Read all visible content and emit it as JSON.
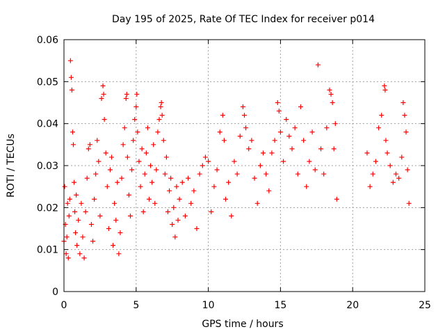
{
  "chart_data": {
    "type": "scatter",
    "title": "Day 195 of 2025, Rate Of TEC Index for receiver p014",
    "xlabel": "GPS time / hours",
    "ylabel": "ROTI / TECUs",
    "xlim": [
      0,
      25
    ],
    "ylim": [
      0,
      0.06
    ],
    "xticks": [
      0,
      5,
      10,
      15,
      20,
      25
    ],
    "xtick_labels": [
      "0",
      "5",
      "10",
      "15",
      "20",
      "25"
    ],
    "yticks": [
      0,
      0.01,
      0.02,
      0.03,
      0.04,
      0.05,
      0.06
    ],
    "ytick_labels": [
      "0",
      "0.01",
      "0.02",
      "0.03",
      "0.04",
      "0.05",
      "0.06"
    ],
    "grid": true,
    "marker": "plus",
    "color": "#ff0000",
    "series": [
      {
        "points": [
          [
            0.0,
            0.012
          ],
          [
            0.05,
            0.025
          ],
          [
            0.1,
            0.016
          ],
          [
            0.15,
            0.009
          ],
          [
            0.2,
            0.013
          ],
          [
            0.25,
            0.021
          ],
          [
            0.3,
            0.008
          ],
          [
            0.35,
            0.018
          ],
          [
            0.4,
            0.022
          ],
          [
            0.45,
            0.055
          ],
          [
            0.5,
            0.051
          ],
          [
            0.55,
            0.048
          ],
          [
            0.6,
            0.038
          ],
          [
            0.65,
            0.035
          ],
          [
            0.7,
            0.026
          ],
          [
            0.75,
            0.019
          ],
          [
            0.8,
            0.014
          ],
          [
            0.85,
            0.023
          ],
          [
            0.9,
            0.011
          ],
          [
            1.0,
            0.017
          ],
          [
            1.1,
            0.009
          ],
          [
            1.2,
            0.021
          ],
          [
            1.3,
            0.013
          ],
          [
            1.4,
            0.008
          ],
          [
            1.5,
            0.019
          ],
          [
            1.6,
            0.027
          ],
          [
            1.7,
            0.034
          ],
          [
            1.8,
            0.035
          ],
          [
            1.9,
            0.016
          ],
          [
            2.0,
            0.012
          ],
          [
            2.1,
            0.022
          ],
          [
            2.2,
            0.028
          ],
          [
            2.3,
            0.036
          ],
          [
            2.4,
            0.031
          ],
          [
            2.5,
            0.018
          ],
          [
            2.6,
            0.046
          ],
          [
            2.7,
            0.049
          ],
          [
            2.75,
            0.047
          ],
          [
            2.8,
            0.041
          ],
          [
            2.9,
            0.033
          ],
          [
            3.0,
            0.025
          ],
          [
            3.1,
            0.015
          ],
          [
            3.2,
            0.029
          ],
          [
            3.3,
            0.032
          ],
          [
            3.4,
            0.011
          ],
          [
            3.5,
            0.021
          ],
          [
            3.6,
            0.017
          ],
          [
            3.7,
            0.026
          ],
          [
            3.8,
            0.009
          ],
          [
            3.9,
            0.014
          ],
          [
            4.0,
            0.027
          ],
          [
            4.1,
            0.035
          ],
          [
            4.2,
            0.039
          ],
          [
            4.3,
            0.046
          ],
          [
            4.35,
            0.047
          ],
          [
            4.4,
            0.032
          ],
          [
            4.5,
            0.023
          ],
          [
            4.6,
            0.018
          ],
          [
            4.7,
            0.029
          ],
          [
            4.8,
            0.036
          ],
          [
            4.9,
            0.041
          ],
          [
            5.0,
            0.044
          ],
          [
            5.05,
            0.047
          ],
          [
            5.1,
            0.038
          ],
          [
            5.2,
            0.031
          ],
          [
            5.3,
            0.025
          ],
          [
            5.4,
            0.034
          ],
          [
            5.5,
            0.019
          ],
          [
            5.6,
            0.028
          ],
          [
            5.7,
            0.033
          ],
          [
            5.8,
            0.039
          ],
          [
            5.9,
            0.022
          ],
          [
            6.0,
            0.03
          ],
          [
            6.1,
            0.026
          ],
          [
            6.2,
            0.035
          ],
          [
            6.3,
            0.021
          ],
          [
            6.4,
            0.029
          ],
          [
            6.5,
            0.038
          ],
          [
            6.6,
            0.041
          ],
          [
            6.7,
            0.044
          ],
          [
            6.75,
            0.045
          ],
          [
            6.8,
            0.042
          ],
          [
            6.9,
            0.036
          ],
          [
            7.0,
            0.028
          ],
          [
            7.1,
            0.032
          ],
          [
            7.2,
            0.019
          ],
          [
            7.3,
            0.024
          ],
          [
            7.4,
            0.027
          ],
          [
            7.5,
            0.016
          ],
          [
            7.6,
            0.02
          ],
          [
            7.7,
            0.013
          ],
          [
            7.8,
            0.025
          ],
          [
            7.9,
            0.017
          ],
          [
            8.0,
            0.022
          ],
          [
            8.2,
            0.026
          ],
          [
            8.4,
            0.018
          ],
          [
            8.6,
            0.027
          ],
          [
            8.8,
            0.021
          ],
          [
            9.0,
            0.024
          ],
          [
            9.2,
            0.015
          ],
          [
            9.4,
            0.028
          ],
          [
            9.6,
            0.03
          ],
          [
            9.8,
            0.032
          ],
          [
            10.0,
            0.031
          ],
          [
            10.2,
            0.019
          ],
          [
            10.4,
            0.025
          ],
          [
            10.6,
            0.029
          ],
          [
            10.8,
            0.038
          ],
          [
            11.0,
            0.042
          ],
          [
            11.1,
            0.036
          ],
          [
            11.2,
            0.022
          ],
          [
            11.4,
            0.026
          ],
          [
            11.6,
            0.018
          ],
          [
            11.8,
            0.031
          ],
          [
            12.0,
            0.028
          ],
          [
            12.2,
            0.037
          ],
          [
            12.4,
            0.044
          ],
          [
            12.5,
            0.042
          ],
          [
            12.6,
            0.039
          ],
          [
            12.8,
            0.034
          ],
          [
            13.0,
            0.036
          ],
          [
            13.2,
            0.027
          ],
          [
            13.4,
            0.021
          ],
          [
            13.6,
            0.03
          ],
          [
            13.8,
            0.033
          ],
          [
            14.0,
            0.028
          ],
          [
            14.2,
            0.024
          ],
          [
            14.4,
            0.033
          ],
          [
            14.6,
            0.036
          ],
          [
            14.8,
            0.045
          ],
          [
            14.9,
            0.043
          ],
          [
            15.0,
            0.038
          ],
          [
            15.2,
            0.031
          ],
          [
            15.4,
            0.041
          ],
          [
            15.6,
            0.037
          ],
          [
            15.8,
            0.034
          ],
          [
            16.0,
            0.039
          ],
          [
            16.2,
            0.028
          ],
          [
            16.4,
            0.044
          ],
          [
            16.6,
            0.036
          ],
          [
            16.8,
            0.025
          ],
          [
            17.0,
            0.031
          ],
          [
            17.2,
            0.038
          ],
          [
            17.4,
            0.029
          ],
          [
            17.6,
            0.054
          ],
          [
            17.8,
            0.034
          ],
          [
            18.0,
            0.028
          ],
          [
            18.2,
            0.039
          ],
          [
            18.4,
            0.048
          ],
          [
            18.5,
            0.047
          ],
          [
            18.6,
            0.045
          ],
          [
            18.7,
            0.034
          ],
          [
            18.8,
            0.04
          ],
          [
            18.9,
            0.022
          ],
          [
            21.0,
            0.033
          ],
          [
            21.2,
            0.025
          ],
          [
            21.4,
            0.028
          ],
          [
            21.6,
            0.031
          ],
          [
            21.8,
            0.039
          ],
          [
            22.0,
            0.042
          ],
          [
            22.2,
            0.049
          ],
          [
            22.25,
            0.048
          ],
          [
            22.3,
            0.036
          ],
          [
            22.4,
            0.033
          ],
          [
            22.6,
            0.03
          ],
          [
            22.8,
            0.026
          ],
          [
            23.0,
            0.028
          ],
          [
            23.2,
            0.027
          ],
          [
            23.4,
            0.032
          ],
          [
            23.5,
            0.045
          ],
          [
            23.6,
            0.042
          ],
          [
            23.7,
            0.038
          ],
          [
            23.8,
            0.029
          ],
          [
            23.9,
            0.021
          ]
        ]
      }
    ]
  }
}
